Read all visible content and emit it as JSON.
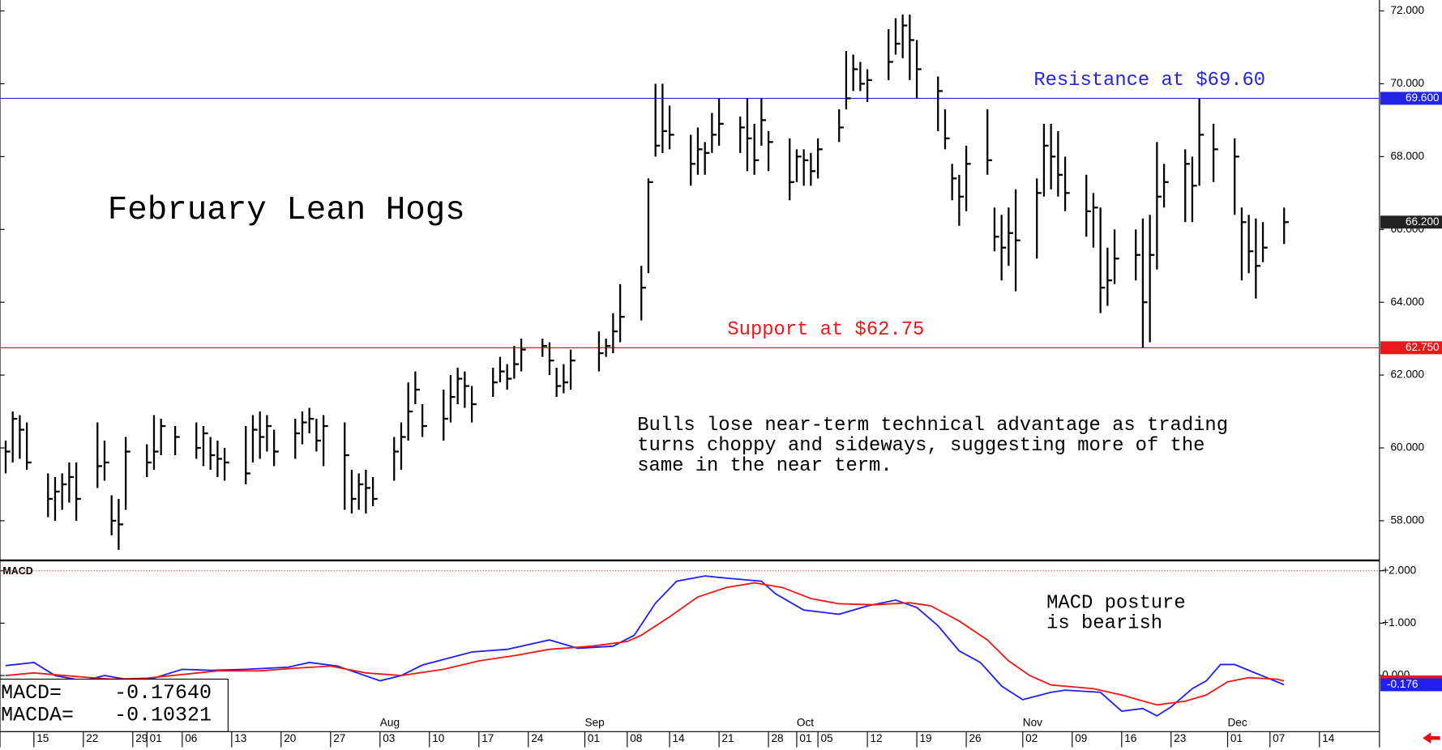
{
  "chart_data": [
    {
      "type": "ohlc",
      "title": "February Lean Hogs",
      "x": [
        -4,
        -3,
        -2,
        -1,
        2,
        3,
        4,
        5,
        6,
        9,
        10,
        11,
        12,
        13,
        16,
        17,
        18,
        20,
        23,
        24,
        25,
        26,
        27,
        30,
        31,
        32,
        33,
        34,
        37,
        38,
        39,
        40,
        41,
        44,
        45,
        46,
        47,
        48,
        51,
        52,
        53,
        54,
        55,
        58,
        59,
        60,
        61,
        62,
        65,
        66,
        67,
        68,
        69,
        72,
        73,
        74,
        75,
        76,
        80,
        81,
        82,
        83,
        86,
        87,
        88,
        89,
        90,
        93,
        94,
        95,
        96,
        97,
        100,
        101,
        102,
        103,
        104,
        107,
        108,
        109,
        110,
        111,
        114,
        115,
        116,
        117,
        118,
        121,
        122,
        123,
        124,
        125,
        128,
        129,
        130,
        131,
        132,
        135,
        136,
        137,
        138,
        139,
        142,
        143,
        144,
        145,
        146,
        149,
        150,
        151,
        152,
        153,
        156,
        157,
        158,
        159,
        160,
        163,
        164,
        165,
        167,
        170,
        171,
        172,
        173,
        174,
        177
      ],
      "high": [
        60.2,
        61.0,
        60.9,
        60.7,
        59.3,
        59.2,
        59.3,
        59.6,
        59.6,
        60.7,
        60.2,
        58.7,
        58.6,
        60.3,
        60.1,
        60.9,
        60.8,
        60.6,
        60.7,
        60.6,
        60.3,
        60.2,
        60.0,
        60.6,
        60.9,
        61.0,
        60.9,
        60.5,
        60.8,
        61.0,
        61.1,
        60.8,
        60.9,
        60.7,
        59.4,
        59.3,
        59.4,
        59.2,
        60.3,
        60.7,
        61.8,
        62.1,
        61.2,
        61.6,
        62.0,
        62.2,
        62.1,
        61.7,
        62.2,
        62.5,
        62.3,
        62.8,
        63.0,
        63.0,
        62.9,
        62.2,
        62.3,
        62.7,
        63.2,
        63.0,
        63.7,
        64.5,
        65.0,
        67.4,
        70.0,
        70.0,
        69.4,
        68.6,
        68.8,
        68.4,
        69.2,
        69.6,
        69.1,
        69.6,
        68.9,
        69.6,
        68.7,
        68.5,
        68.2,
        68.2,
        68.1,
        68.5,
        69.3,
        70.9,
        70.8,
        70.6,
        70.4,
        71.5,
        71.8,
        71.9,
        71.9,
        71.2,
        70.2,
        69.3,
        67.8,
        67.5,
        68.3,
        69.3,
        66.6,
        66.4,
        66.6,
        67.1,
        67.4,
        68.9,
        68.9,
        68.7,
        68.0,
        67.5,
        67.0,
        66.6,
        65.5,
        66.0,
        66.0,
        66.3,
        66.4,
        68.4,
        67.8,
        68.2,
        68.0,
        69.6,
        68.9,
        68.5,
        66.6,
        66.4,
        66.3,
        66.2,
        66.6
      ],
      "low": [
        59.3,
        59.6,
        59.7,
        59.4,
        58.1,
        58.0,
        58.3,
        58.5,
        58.0,
        58.9,
        59.1,
        57.6,
        57.2,
        58.3,
        59.2,
        59.4,
        59.8,
        59.8,
        59.7,
        59.5,
        59.4,
        59.2,
        59.1,
        59.0,
        59.6,
        59.7,
        59.9,
        59.5,
        59.7,
        60.1,
        60.4,
        59.9,
        59.5,
        58.3,
        58.2,
        58.3,
        58.2,
        58.4,
        59.1,
        59.4,
        60.2,
        61.2,
        60.3,
        60.2,
        60.7,
        61.2,
        61.1,
        60.7,
        61.4,
        61.8,
        61.6,
        61.9,
        62.1,
        62.5,
        62.0,
        61.4,
        61.5,
        61.6,
        62.1,
        62.5,
        62.6,
        62.9,
        63.5,
        64.8,
        68.0,
        68.1,
        68.2,
        67.2,
        67.5,
        67.5,
        68.1,
        68.3,
        68.1,
        67.6,
        67.5,
        68.3,
        67.6,
        66.8,
        67.3,
        67.2,
        67.2,
        67.4,
        68.4,
        69.3,
        69.8,
        69.8,
        69.5,
        70.1,
        70.8,
        70.7,
        70.1,
        69.6,
        68.7,
        68.2,
        66.8,
        66.1,
        66.5,
        67.5,
        65.4,
        64.6,
        65.0,
        64.3,
        65.2,
        66.9,
        67.1,
        66.9,
        66.5,
        65.8,
        65.5,
        63.7,
        63.9,
        64.5,
        64.6,
        62.75,
        62.9,
        64.9,
        66.6,
        66.2,
        66.2,
        67.2,
        67.3,
        66.4,
        64.6,
        64.8,
        64.1,
        65.1,
        65.6
      ],
      "close": [
        59.9,
        60.8,
        60.5,
        59.6,
        58.6,
        58.8,
        59.0,
        59.2,
        58.6,
        59.5,
        59.6,
        58.0,
        57.9,
        59.9,
        59.6,
        59.9,
        60.6,
        60.3,
        60.0,
        60.4,
        59.8,
        59.7,
        59.6,
        59.3,
        60.5,
        60.3,
        60.6,
        59.9,
        60.4,
        60.7,
        60.8,
        60.2,
        60.6,
        59.8,
        58.6,
        59.0,
        58.9,
        58.6,
        59.9,
        60.3,
        61.0,
        61.6,
        60.6,
        60.8,
        61.4,
        61.9,
        61.7,
        61.2,
        61.8,
        62.1,
        61.9,
        62.3,
        62.7,
        62.8,
        62.4,
        61.7,
        61.8,
        62.4,
        62.6,
        62.8,
        63.2,
        63.6,
        64.4,
        67.3,
        68.3,
        68.7,
        68.6,
        67.8,
        68.2,
        68.1,
        68.6,
        68.9,
        68.8,
        68.5,
        67.9,
        69.0,
        68.4,
        67.3,
        68.0,
        67.9,
        67.6,
        68.2,
        68.8,
        69.6,
        70.4,
        70.0,
        70.1,
        70.6,
        71.1,
        71.6,
        71.2,
        70.4,
        69.8,
        68.5,
        67.4,
        66.9,
        67.8,
        67.9,
        65.8,
        65.5,
        65.9,
        65.7,
        67.0,
        68.3,
        68.0,
        67.5,
        67.0,
        66.5,
        66.6,
        64.4,
        64.6,
        65.2,
        65.3,
        64.0,
        65.3,
        66.9,
        67.3,
        67.8,
        67.2,
        68.6,
        68.2,
        68.0,
        66.2,
        65.4,
        65.0,
        65.5,
        66.2
      ],
      "color": "#000000",
      "xlim": [
        -4.8,
        190.5
      ],
      "xticks": [
        {
          "value": 0,
          "label": "15"
        },
        {
          "value": 7,
          "label": "22"
        },
        {
          "value": 14,
          "label": "29"
        },
        {
          "value": 16,
          "label": "01"
        },
        {
          "value": 21,
          "label": "06"
        },
        {
          "value": 28,
          "label": "13"
        },
        {
          "value": 35,
          "label": "20"
        },
        {
          "value": 42,
          "label": "27"
        },
        {
          "value": 49,
          "label": "03"
        },
        {
          "value": 56,
          "label": "10"
        },
        {
          "value": 63,
          "label": "17"
        },
        {
          "value": 70,
          "label": "24"
        },
        {
          "value": 78,
          "label": "01"
        },
        {
          "value": 84,
          "label": "08"
        },
        {
          "value": 90,
          "label": "14"
        },
        {
          "value": 97,
          "label": "21"
        },
        {
          "value": 104,
          "label": "28"
        },
        {
          "value": 108,
          "label": "01"
        },
        {
          "value": 111,
          "label": "05"
        },
        {
          "value": 118,
          "label": "12"
        },
        {
          "value": 125,
          "label": "19"
        },
        {
          "value": 132,
          "label": "26"
        },
        {
          "value": 140,
          "label": "02"
        },
        {
          "value": 147,
          "label": "09"
        },
        {
          "value": 154,
          "label": "16"
        },
        {
          "value": 161,
          "label": "23"
        },
        {
          "value": 169,
          "label": "01"
        },
        {
          "value": 175,
          "label": "07"
        },
        {
          "value": 182,
          "label": "14"
        }
      ],
      "months": [
        {
          "value": 49,
          "label": "Aug"
        },
        {
          "value": 78,
          "label": "Sep"
        },
        {
          "value": 108,
          "label": "Oct"
        },
        {
          "value": 140,
          "label": "Nov"
        },
        {
          "value": 169,
          "label": "Dec"
        }
      ],
      "ylim": [
        56.91,
        72.3
      ],
      "yticks": [
        {
          "value": 58,
          "label": "58.000"
        },
        {
          "value": 60,
          "label": "60.000"
        },
        {
          "value": 62,
          "label": "62.000"
        },
        {
          "value": 64,
          "label": "64.000"
        },
        {
          "value": 66,
          "label": "66.000"
        },
        {
          "value": 68,
          "label": "68.000"
        },
        {
          "value": 70,
          "label": "70.000"
        },
        {
          "value": 72,
          "label": "72.000"
        }
      ],
      "levels": [
        {
          "value": 69.6,
          "label": "Resistance at $69.60",
          "tag": "69.600",
          "color": "#2424e6"
        },
        {
          "value": 62.75,
          "label": "Support at $62.75",
          "tag": "62.750",
          "color": "#e61a1a"
        }
      ],
      "last": {
        "value": 66.2,
        "tag": "66.200"
      },
      "comment": [
        "Bulls lose near-term technical advantage as trading",
        "turns choppy and sideways, suggesting more of the",
        "same in the near term."
      ]
    },
    {
      "type": "line",
      "title": "MACD",
      "series": [
        {
          "name": "MACD",
          "color": "#2020f0",
          "x": [
            -4,
            0,
            3,
            7,
            10,
            13,
            17,
            21,
            25,
            30,
            36,
            39,
            43,
            49,
            52,
            55,
            62,
            67,
            73,
            77,
            82,
            85,
            88,
            91,
            95,
            98,
            103,
            105,
            109,
            114,
            118,
            122,
            125,
            128,
            131,
            134,
            137,
            140,
            144,
            146,
            151,
            154,
            157,
            159,
            161,
            164,
            166,
            168,
            170,
            172,
            176,
            177
          ],
          "values": [
            0.19,
            0.25,
            0,
            -0.1,
            0,
            -0.07,
            -0.05,
            0.12,
            0.1,
            0.12,
            0.16,
            0.25,
            0.18,
            -0.1,
            0,
            0.2,
            0.45,
            0.5,
            0.68,
            0.52,
            0.56,
            0.77,
            1.38,
            1.8,
            1.9,
            1.86,
            1.8,
            1.56,
            1.25,
            1.17,
            1.33,
            1.44,
            1.3,
            0.95,
            0.47,
            0.25,
            -0.2,
            -0.46,
            -0.32,
            -0.28,
            -0.32,
            -0.68,
            -0.63,
            -0.77,
            -0.6,
            -0.25,
            -0.1,
            0.21,
            0.21,
            0.1,
            -0.12,
            -0.1764
          ],
          "readout": "-0.17640",
          "tag": "-0.176"
        },
        {
          "name": "MACDA",
          "color": "#f01818",
          "x": [
            -4,
            0,
            6,
            11,
            16,
            21,
            26,
            32,
            37,
            42,
            47,
            52,
            58,
            63,
            68,
            73,
            79,
            84,
            86,
            90,
            94,
            98,
            102,
            106,
            110,
            114,
            119,
            124,
            127,
            131,
            135,
            138,
            141,
            144,
            150,
            154,
            159,
            163,
            166,
            169,
            172,
            176,
            177
          ],
          "values": [
            0,
            0.05,
            -0.02,
            -0.07,
            -0.05,
            0.02,
            0.09,
            0.09,
            0.14,
            0.18,
            0.05,
            0,
            0.12,
            0.28,
            0.38,
            0.5,
            0.56,
            0.65,
            0.77,
            1.12,
            1.5,
            1.68,
            1.77,
            1.68,
            1.47,
            1.37,
            1.35,
            1.39,
            1.33,
            1.04,
            0.68,
            0.28,
            0,
            -0.18,
            -0.25,
            -0.37,
            -0.56,
            -0.49,
            -0.37,
            -0.12,
            -0.04,
            -0.07,
            -0.10321
          ],
          "readout": "-0.10321"
        }
      ],
      "ylim": [
        -1.07,
        2.18
      ],
      "yticks": [
        {
          "value": 2,
          "label": "+2.000"
        },
        {
          "value": 1,
          "label": "+1.000"
        },
        {
          "value": 0,
          "label": "0.000"
        }
      ],
      "annotation": [
        "MACD posture",
        "is bearish"
      ]
    }
  ]
}
